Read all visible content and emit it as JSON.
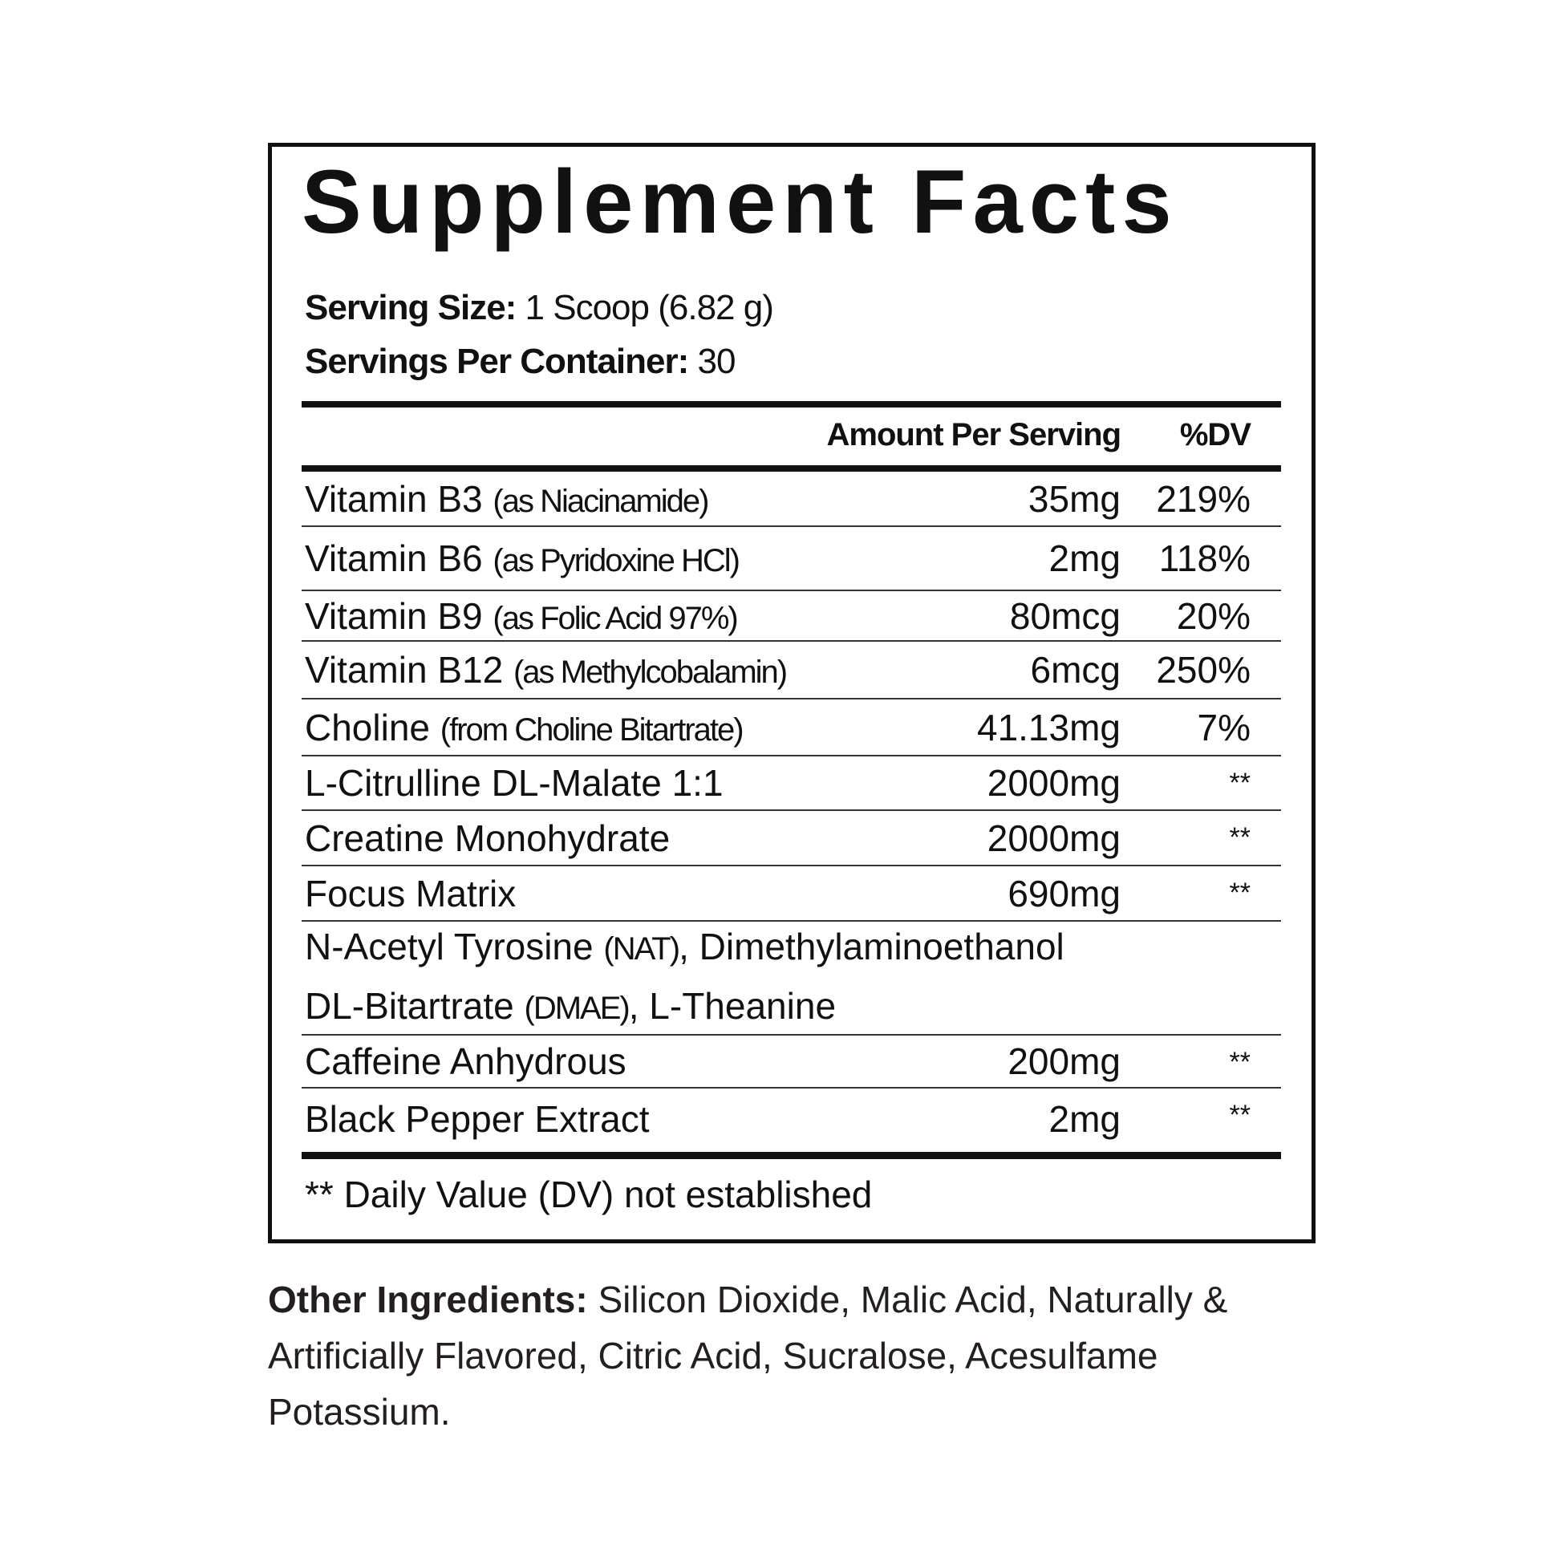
{
  "label": {
    "title": "Supplement Facts",
    "serving_size_label": "Serving Size:",
    "serving_size_value": " 1 Scoop (6.82 g)",
    "servings_per_container_label": "Servings Per Container:",
    "servings_per_container_value": " 30",
    "header_amount": "Amount Per Serving",
    "header_dv": "%DV",
    "rows": [
      {
        "name": "Vitamin B3 ",
        "note": "(as Niacinamide)",
        "amount": "35mg",
        "dv": "219%"
      },
      {
        "name": "Vitamin B6 ",
        "note": "(as Pyridoxine HCl)",
        "amount": "2mg",
        "dv": "118%"
      },
      {
        "name": "Vitamin B9 ",
        "note": "(as Folic Acid 97%)",
        "amount": "80mcg",
        "dv": "20%"
      },
      {
        "name": "Vitamin B12 ",
        "note": "(as Methylcobalamin)",
        "amount": "6mcg",
        "dv": "250%"
      },
      {
        "name": "Choline ",
        "note": "(from Choline Bitartrate)",
        "amount": "41.13mg",
        "dv": "7%"
      },
      {
        "name": "L-Citrulline DL-Malate 1:1",
        "amount": "2000mg",
        "dv": "**"
      },
      {
        "name": "Creatine Monohydrate",
        "amount": "2000mg",
        "dv": "**"
      },
      {
        "name": "Focus Matrix",
        "amount": "690mg",
        "dv": "**"
      },
      {
        "line1_a": "N-Acetyl Tyrosine ",
        "line1_note": "(NAT)",
        "line1_b": ", Dimethylaminoethanol",
        "line2_a": "DL-Bitartrate ",
        "line2_note": "(DMAE)",
        "line2_b": ", L-Theanine"
      },
      {
        "name": "Caffeine Anhydrous",
        "amount": "200mg",
        "dv": "**"
      },
      {
        "name": "Black Pepper Extract",
        "amount": "2mg",
        "dv": "**"
      }
    ],
    "footnote": "** Daily Value (DV) not established"
  },
  "other_ingredients": {
    "label": "Other Ingredients:",
    "text": " Silicon Dioxide, Malic Acid, Naturally & Artificially Flavored, Citric Acid, Sucralose, Acesulfame Potassium."
  }
}
